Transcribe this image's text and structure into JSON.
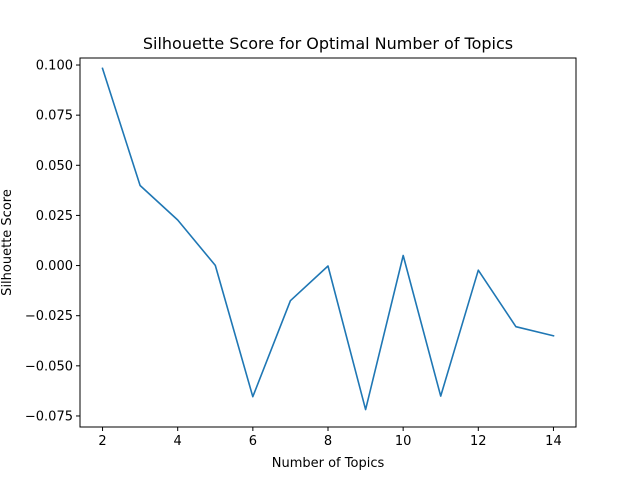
{
  "chart_data": {
    "type": "line",
    "title": "Silhouette Score for Optimal Number of Topics",
    "xlabel": "Number of Topics",
    "ylabel": "Silhouette Score",
    "xlim": [
      1.4,
      14.6
    ],
    "ylim": [
      -0.0805,
      0.1035
    ],
    "xticks": [
      2,
      4,
      6,
      8,
      10,
      12,
      14
    ],
    "yticks": [
      -0.075,
      -0.05,
      -0.025,
      0.0,
      0.025,
      0.05,
      0.075,
      0.1
    ],
    "ytick_labels": [
      "−0.075",
      "−0.050",
      "−0.025",
      "0.000",
      "0.025",
      "0.050",
      "0.075",
      "0.100"
    ],
    "grid": false,
    "series": [
      {
        "color": "#1f77b4",
        "x": [
          2,
          3,
          4,
          5,
          6,
          7,
          8,
          9,
          10,
          11,
          12,
          13,
          14
        ],
        "y": [
          0.0983,
          0.0399,
          0.0227,
          0.0001,
          -0.0654,
          -0.0175,
          -0.0002,
          -0.0718,
          0.005,
          -0.0651,
          -0.0023,
          -0.0305,
          -0.035
        ]
      }
    ]
  }
}
